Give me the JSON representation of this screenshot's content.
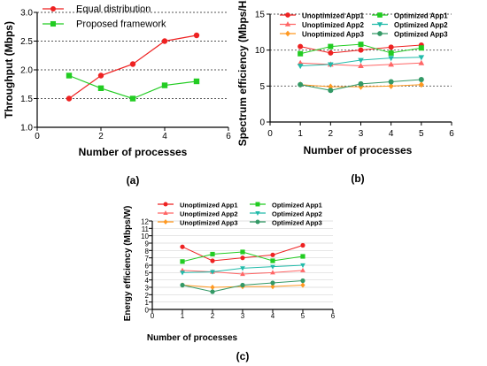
{
  "chart_data": [
    {
      "id": "a",
      "caption": "(a)",
      "type": "line",
      "xlabel": "Number of processes",
      "ylabel": "Throughput (Mbps)",
      "xlim": [
        0,
        6
      ],
      "ylim": [
        1.0,
        3.0
      ],
      "xticks": [
        "0",
        "2",
        "4",
        "6"
      ],
      "yticks": [
        "1.0",
        "1.5",
        "2.0",
        "2.5",
        "3.0"
      ],
      "x": [
        1,
        2,
        3,
        4,
        5
      ],
      "grid": "horizontal dotted",
      "legend": "top-left",
      "series": [
        {
          "name": "Equal distribution",
          "color": "#ee2222",
          "marker": "circle",
          "values": [
            1.5,
            1.9,
            2.1,
            2.5,
            2.6
          ]
        },
        {
          "name": "Proposed framework",
          "color": "#22cc22",
          "marker": "square",
          "values": [
            1.9,
            1.68,
            1.5,
            1.73,
            1.8
          ]
        }
      ]
    },
    {
      "id": "b",
      "caption": "(b)",
      "type": "line",
      "xlabel": "Number of processes",
      "ylabel": "Spectrum efficiency (Mbps/Hz)",
      "xlim": [
        0,
        6
      ],
      "ylim": [
        0,
        15
      ],
      "xticks": [
        "0",
        "1",
        "2",
        "3",
        "4",
        "5",
        "6"
      ],
      "yticks": [
        "0",
        "5",
        "10",
        "15"
      ],
      "x": [
        1,
        2,
        3,
        4,
        5
      ],
      "grid": "horizontal dotted",
      "legend": "top",
      "series": [
        {
          "name": "Unoptimized App1",
          "color": "#ee2222",
          "marker": "circle",
          "values": [
            10.5,
            9.6,
            10.0,
            10.4,
            10.7
          ]
        },
        {
          "name": "Optimized App1",
          "color": "#22cc22",
          "marker": "square",
          "values": [
            9.5,
            10.5,
            10.8,
            9.6,
            10.3
          ]
        },
        {
          "name": "Unoptimized App2",
          "color": "#ff6666",
          "marker": "triangle-up",
          "values": [
            8.2,
            8.0,
            7.8,
            8.0,
            8.2
          ]
        },
        {
          "name": "Optimized App2",
          "color": "#22bbaa",
          "marker": "triangle-down",
          "values": [
            7.8,
            8.0,
            8.6,
            8.9,
            9.0
          ]
        },
        {
          "name": "Unoptimized App3",
          "color": "#ff9922",
          "marker": "diamond",
          "values": [
            5.2,
            4.9,
            4.9,
            5.0,
            5.2
          ]
        },
        {
          "name": "Optimized App3",
          "color": "#339966",
          "marker": "circle",
          "values": [
            5.2,
            4.4,
            5.3,
            5.6,
            5.9
          ]
        }
      ]
    },
    {
      "id": "c",
      "caption": "(c)",
      "type": "line",
      "xlabel": "Number of processes",
      "ylabel": "Energy efficiency (Mbps/W)",
      "xlim": [
        0,
        6
      ],
      "ylim": [
        0,
        12
      ],
      "xticks": [
        "0",
        "1",
        "2",
        "3",
        "4",
        "5",
        "6"
      ],
      "yticks": [
        "0",
        "1",
        "2",
        "3",
        "4",
        "5",
        "6",
        "7",
        "8",
        "9",
        "10",
        "11",
        "12"
      ],
      "x": [
        1,
        2,
        3,
        4,
        5
      ],
      "grid": "horizontal light",
      "legend": "top",
      "series": [
        {
          "name": "Unoptimized App1",
          "color": "#ee2222",
          "marker": "circle",
          "values": [
            8.5,
            6.6,
            7.0,
            7.4,
            8.7
          ]
        },
        {
          "name": "Optimized App1",
          "color": "#22cc22",
          "marker": "square",
          "values": [
            6.5,
            7.5,
            7.8,
            6.6,
            7.2
          ]
        },
        {
          "name": "Unoptimized App2",
          "color": "#ff6666",
          "marker": "triangle-up",
          "values": [
            5.3,
            5.1,
            4.8,
            5.0,
            5.3
          ]
        },
        {
          "name": "Optimized App2",
          "color": "#22bbaa",
          "marker": "triangle-down",
          "values": [
            5.0,
            5.1,
            5.6,
            5.8,
            6.0
          ]
        },
        {
          "name": "Unoptimized App3",
          "color": "#ff9922",
          "marker": "diamond",
          "values": [
            3.3,
            3.0,
            3.1,
            3.1,
            3.3
          ]
        },
        {
          "name": "Optimized App3",
          "color": "#339966",
          "marker": "circle",
          "values": [
            3.3,
            2.4,
            3.3,
            3.6,
            3.9
          ]
        }
      ]
    }
  ]
}
